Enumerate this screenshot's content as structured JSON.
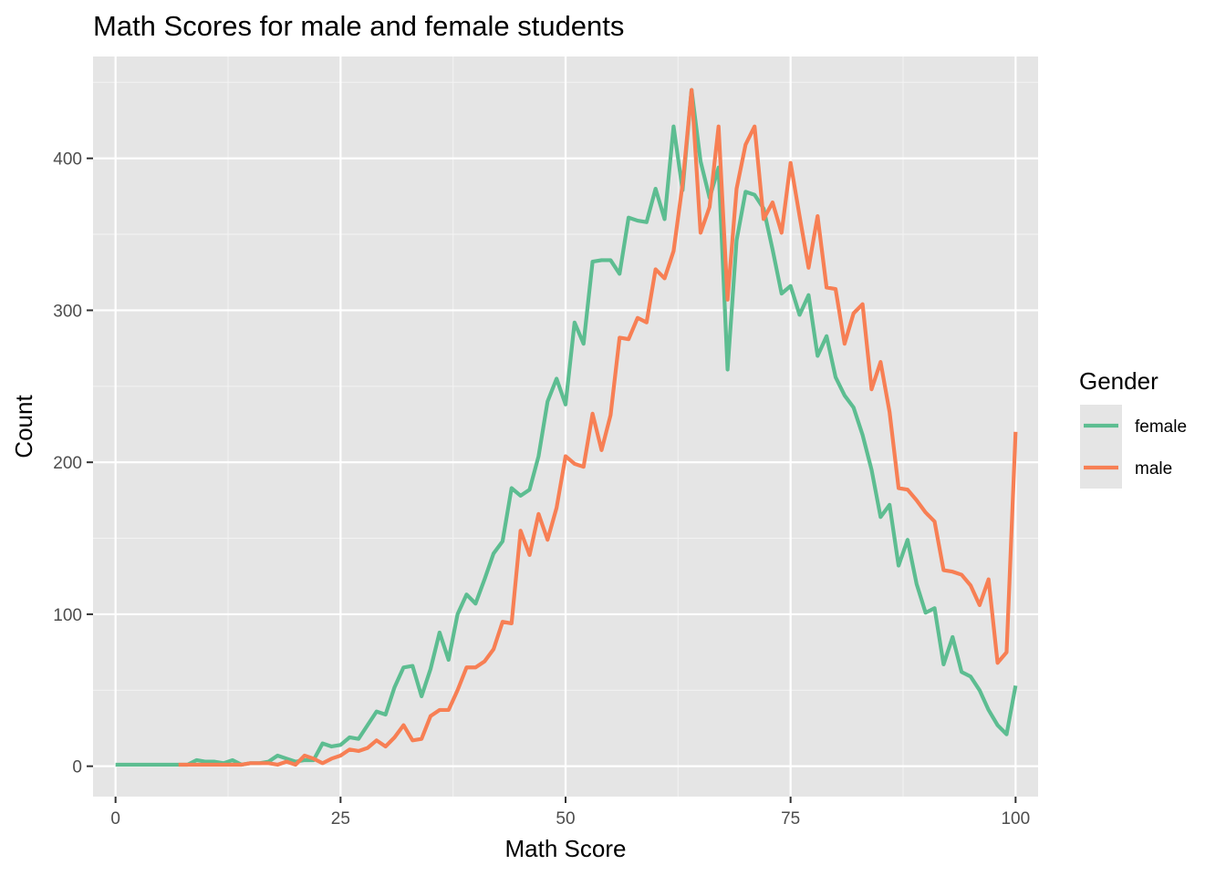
{
  "chart_data": {
    "type": "line",
    "title": "Math Scores for male and female students",
    "xlabel": "Math Score",
    "ylabel": "Count",
    "xlim": [
      -2.5,
      102.5
    ],
    "ylim": [
      -20,
      467
    ],
    "x_ticks": [
      0,
      25,
      50,
      75,
      100
    ],
    "x_tick_labels": [
      "0",
      "25",
      "50",
      "75",
      "100"
    ],
    "y_ticks": [
      0,
      100,
      200,
      300,
      400
    ],
    "y_tick_labels": [
      "0",
      "100",
      "200",
      "300",
      "400"
    ],
    "grid": true,
    "panel_background": "#e5e5e5",
    "legend": {
      "title": "Gender",
      "position": "right"
    },
    "series": [
      {
        "name": "female",
        "color": "#5dbd91",
        "x": [
          0,
          1,
          2,
          3,
          4,
          5,
          6,
          7,
          8,
          9,
          10,
          11,
          12,
          13,
          14,
          15,
          16,
          17,
          18,
          19,
          20,
          21,
          22,
          23,
          24,
          25,
          26,
          27,
          28,
          29,
          30,
          31,
          32,
          33,
          34,
          35,
          36,
          37,
          38,
          39,
          40,
          41,
          42,
          43,
          44,
          45,
          46,
          47,
          48,
          49,
          50,
          51,
          52,
          53,
          54,
          55,
          56,
          57,
          58,
          59,
          60,
          61,
          62,
          63,
          64,
          65,
          66,
          67,
          68,
          69,
          70,
          71,
          72,
          73,
          74,
          75,
          76,
          77,
          78,
          79,
          80,
          81,
          82,
          83,
          84,
          85,
          86,
          87,
          88,
          89,
          90,
          91,
          92,
          93,
          94,
          95,
          96,
          97,
          98,
          99,
          100
        ],
        "values": [
          1,
          1,
          1,
          1,
          1,
          1,
          1,
          1,
          1,
          4,
          3,
          3,
          2,
          4,
          1,
          2,
          2,
          3,
          7,
          5,
          3,
          4,
          4,
          15,
          13,
          14,
          19,
          18,
          27,
          36,
          34,
          52,
          65,
          66,
          46,
          64,
          88,
          70,
          100,
          113,
          107,
          123,
          140,
          148,
          183,
          178,
          182,
          204,
          240,
          255,
          238,
          292,
          278,
          332,
          333,
          333,
          324,
          361,
          359,
          358,
          380,
          360,
          421,
          379,
          445,
          398,
          374,
          394,
          261,
          346,
          378,
          376,
          367,
          340,
          311,
          316,
          297,
          310,
          270,
          283,
          256,
          244,
          236,
          218,
          195,
          164,
          172,
          132,
          149,
          120,
          101,
          104,
          67,
          85,
          62,
          59,
          50,
          37,
          27,
          21,
          53
        ]
      },
      {
        "name": "male",
        "color": "#f77f54",
        "x": [
          7,
          8,
          9,
          10,
          11,
          12,
          13,
          14,
          15,
          16,
          17,
          18,
          19,
          20,
          21,
          22,
          23,
          24,
          25,
          26,
          27,
          28,
          29,
          30,
          31,
          32,
          33,
          34,
          35,
          36,
          37,
          38,
          39,
          40,
          41,
          42,
          43,
          44,
          45,
          46,
          47,
          48,
          49,
          50,
          51,
          52,
          53,
          54,
          55,
          56,
          57,
          58,
          59,
          60,
          61,
          62,
          63,
          64,
          65,
          66,
          67,
          68,
          69,
          70,
          71,
          72,
          73,
          74,
          75,
          76,
          77,
          78,
          79,
          80,
          81,
          82,
          83,
          84,
          85,
          86,
          87,
          88,
          89,
          90,
          91,
          92,
          93,
          94,
          95,
          96,
          97,
          98,
          99,
          100
        ],
        "values": [
          1,
          1,
          1,
          1,
          1,
          1,
          1,
          1,
          2,
          2,
          2,
          1,
          3,
          1,
          7,
          5,
          2,
          5,
          7,
          11,
          10,
          12,
          17,
          13,
          19,
          27,
          17,
          18,
          33,
          37,
          37,
          50,
          65,
          65,
          69,
          77,
          95,
          94,
          155,
          139,
          166,
          149,
          170,
          204,
          199,
          197,
          232,
          208,
          231,
          282,
          281,
          295,
          292,
          327,
          321,
          339,
          383,
          445,
          351,
          368,
          421,
          307,
          380,
          409,
          421,
          360,
          371,
          351,
          397,
          362,
          328,
          362,
          315,
          314,
          278,
          298,
          304,
          248,
          266,
          233,
          183,
          182,
          175,
          167,
          161,
          129,
          128,
          126,
          119,
          106,
          123,
          68,
          75,
          220
        ]
      }
    ]
  }
}
